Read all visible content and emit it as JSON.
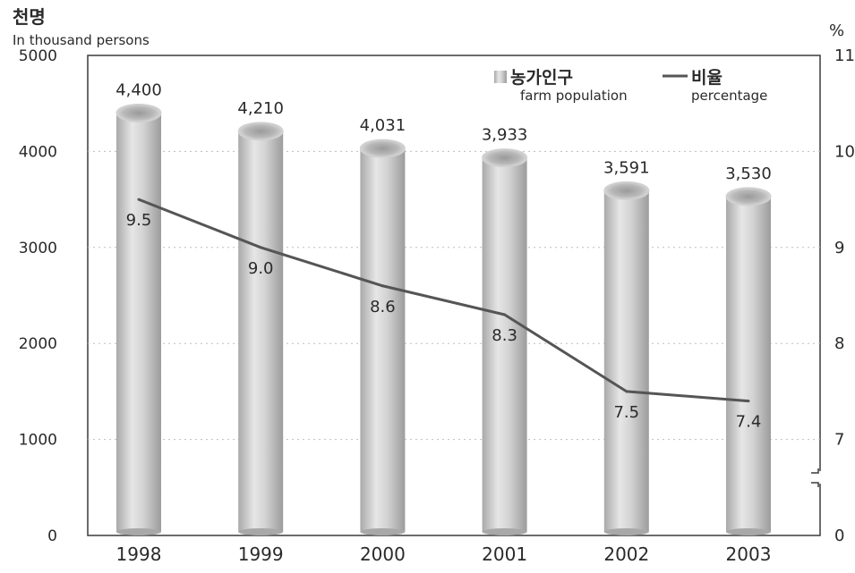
{
  "chart_data": {
    "type": "bar",
    "left_axis": {
      "unit_ko": "천명",
      "unit_en": "In thousand persons",
      "ylim": [
        0,
        5000
      ],
      "ticks": [
        "0",
        "1000",
        "2000",
        "3000",
        "4000",
        "5000"
      ],
      "tick_values": [
        0,
        1000,
        2000,
        3000,
        4000,
        5000
      ]
    },
    "right_axis": {
      "unit": "%",
      "ylim": [
        6,
        11
      ],
      "axis_break": true,
      "ticks": [
        "0",
        "7",
        "8",
        "9",
        "10",
        "11"
      ],
      "tick_values": [
        7,
        8,
        9,
        10,
        11
      ]
    },
    "categories": [
      "1998",
      "1999",
      "2000",
      "2001",
      "2002",
      "2003"
    ],
    "grid": true,
    "legend_position": "top-right",
    "series": [
      {
        "name_ko": "농가인구",
        "name_en": "farm population",
        "type": "bar",
        "axis": "left",
        "color": "#c9c9c9",
        "values": [
          4400,
          4210,
          4031,
          3933,
          3591,
          3530
        ],
        "labels": [
          "4,400",
          "4,210",
          "4,031",
          "3,933",
          "3,591",
          "3,530"
        ]
      },
      {
        "name_ko": "비율",
        "name_en": "percentage",
        "type": "line",
        "axis": "right",
        "color": "#555555",
        "values": [
          9.5,
          9.0,
          8.6,
          8.3,
          7.5,
          7.4
        ],
        "labels": [
          "9.5",
          "9.0",
          "8.6",
          "8.3",
          "7.5",
          "7.4"
        ]
      }
    ]
  }
}
